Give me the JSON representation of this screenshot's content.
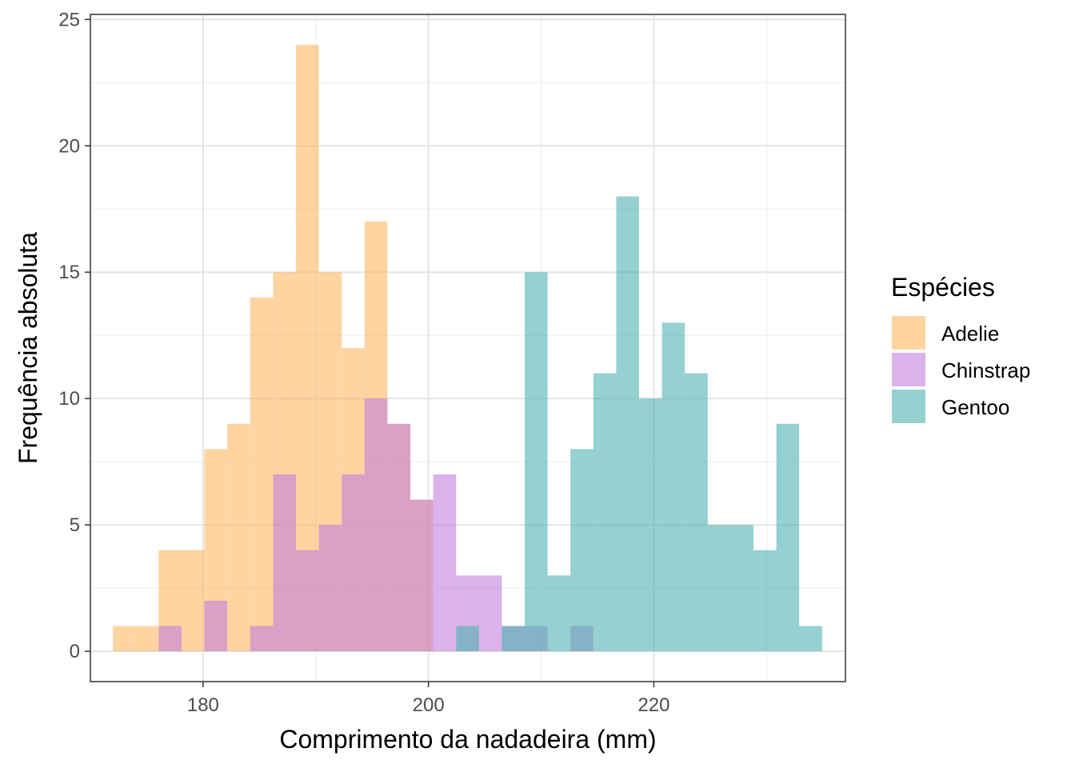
{
  "chart_data": {
    "type": "bar",
    "xlabel": "Comprimento da nadadeira (mm)",
    "ylabel": "Frequência absoluta",
    "xlim": [
      170,
      237
    ],
    "ylim": [
      -1.2,
      25.2
    ],
    "x_ticks": [
      180,
      200,
      220
    ],
    "y_ticks": [
      0,
      5,
      10,
      15,
      20,
      25
    ],
    "grid": true,
    "legend": {
      "title": "Espécies",
      "position": "right"
    },
    "bin_width": 2.03,
    "bin_start": 172.0,
    "series": [
      {
        "name": "Adelie",
        "color": "#FDB863",
        "counts": [
          1,
          1,
          4,
          4,
          8,
          9,
          14,
          15,
          24,
          15,
          12,
          17,
          9,
          6
        ]
      },
      {
        "name": "Chinstrap",
        "color": "#C27FE0",
        "counts": [
          0,
          0,
          1,
          0,
          2,
          0,
          1,
          7,
          4,
          5,
          7,
          10,
          9,
          6,
          7,
          3,
          3,
          1,
          1,
          0,
          1
        ]
      },
      {
        "name": "Gentoo",
        "color": "#4FB3B0",
        "counts": [
          0,
          0,
          0,
          0,
          0,
          0,
          0,
          0,
          0,
          0,
          0,
          0,
          0,
          0,
          0,
          1,
          0,
          1,
          15,
          3,
          8,
          11,
          18,
          10,
          13,
          11,
          5,
          5,
          4,
          9,
          1
        ]
      }
    ]
  }
}
